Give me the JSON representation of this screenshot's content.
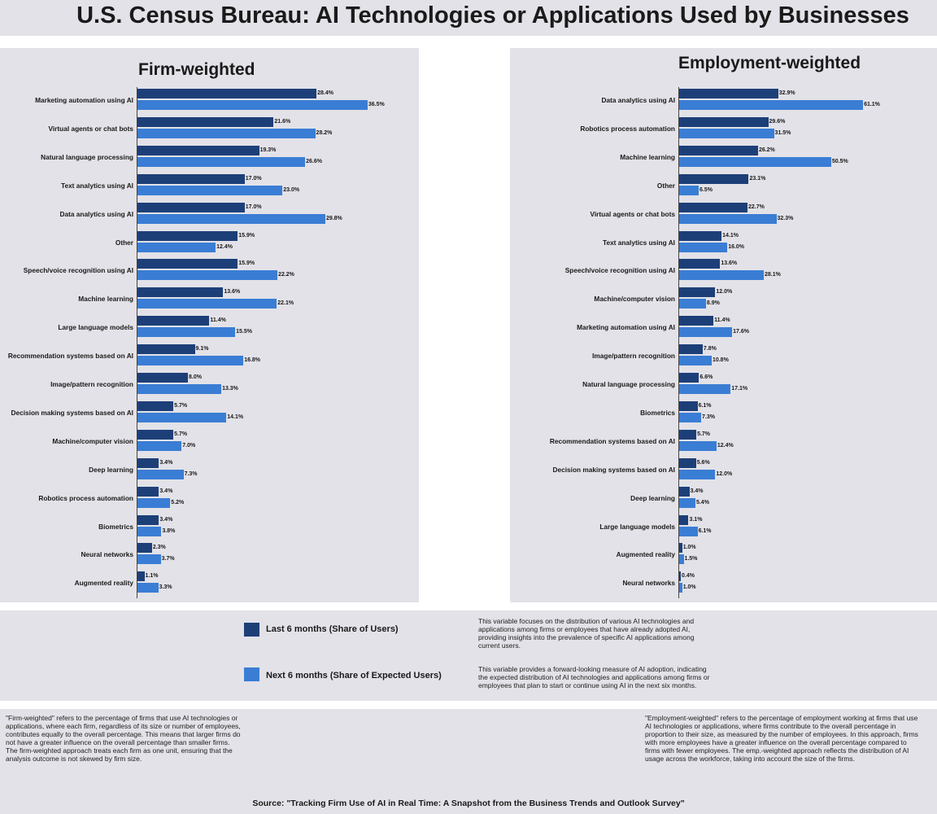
{
  "title": "U.S. Census Bureau: AI Technologies or Applications Used by Businesses",
  "colors": {
    "last": "#1d3f78",
    "next": "#3a7dd4",
    "panel": "#e2e2e8"
  },
  "legend": {
    "last_label": "Last 6 months (Share of Users)",
    "next_label": "Next 6 months (Share of Expected Users)",
    "last_desc": "This variable focuses on the distribution of various AI technologies and applications among firms or employees that have already adopted AI, providing insights into the prevalence of specific AI applications among current users.",
    "next_desc": "This variable provides a forward-looking measure of AI adoption, indicating the expected distribution of AI technologies and applications among firms or employees that plan to start or continue using AI in the next six months."
  },
  "notes": {
    "firm": "\"Firm-weighted\" refers to the percentage of firms that use AI technologies or applications, where each firm, regardless of its size or number of employees, contributes equally to the overall percentage. This means that larger firms do not have a greater influence on the overall percentage than smaller firms. The firm-weighted approach treats each firm as one unit, ensuring that the analysis outcome is not skewed by firm size.",
    "employment": "\"Employment-weighted\" refers to the percentage of employment working at firms that use AI technologies or applications, where firms contribute to the overall percentage in proportion to their size, as measured by the number of employees. In this approach, firms with more employees have a greater influence on the overall percentage compared to firms with fewer employees. The emp.-weighted approach reflects the distribution of AI usage across the workforce, taking into account the size of the firms."
  },
  "source": "Source:  \"Tracking Firm Use of AI in Real Time: A Snapshot from the Business Trends and Outlook Survey\"",
  "chart_data": [
    {
      "type": "bar",
      "orientation": "horizontal",
      "title": "Firm-weighted",
      "categories": [
        "Marketing automation using AI",
        "Virtual agents or chat bots",
        "Natural language processing",
        "Text analytics using AI",
        "Data analytics using AI",
        "Other",
        "Speech/voice recognition using AI",
        "Machine learning",
        "Large language models",
        "Recommendation systems based on AI",
        "Image/pattern recognition",
        "Decision making systems based on AI",
        "Machine/computer vision",
        "Deep learning",
        "Robotics process automation",
        "Biometrics",
        "Neural networks",
        "Augmented reality"
      ],
      "series": [
        {
          "name": "Last 6 months (Share of Users)",
          "values": [
            28.4,
            21.6,
            19.3,
            17.0,
            17.0,
            15.9,
            15.9,
            13.6,
            11.4,
            9.1,
            8.0,
            5.7,
            5.7,
            3.4,
            3.4,
            3.4,
            2.3,
            1.1
          ]
        },
        {
          "name": "Next 6 months (Share of Expected Users)",
          "values": [
            36.5,
            28.2,
            26.6,
            23.0,
            29.8,
            12.4,
            22.2,
            22.1,
            15.5,
            16.8,
            13.3,
            14.1,
            7.0,
            7.3,
            5.2,
            3.8,
            3.7,
            3.3
          ]
        }
      ],
      "labels_last": [
        "28.4%",
        "21.6%",
        "19.3%",
        "17.0%",
        "17.0%",
        "15.9%",
        "15.9%",
        "13.6%",
        "11.4%",
        "9.1%",
        "8.0%",
        "5.7%",
        "5.7%",
        "3.4%",
        "3.4%",
        "3.4%",
        "2.3%",
        "1.1%"
      ],
      "labels_next": [
        "36.5%",
        "28.2%",
        "26.6%",
        "23.0%",
        "29.8%",
        "12.4%",
        "22.2%",
        "22.1%",
        "15.5%",
        "16.8%",
        "13.3%",
        "14.1%",
        "7.0%",
        "7.3%",
        "5.2%",
        "3.8%",
        "3.7%",
        "3.3%"
      ]
    },
    {
      "type": "bar",
      "orientation": "horizontal",
      "title": "Employment-weighted",
      "categories": [
        "Data analytics using AI",
        "Robotics process automation",
        "Machine learning",
        "Other",
        "Virtual agents or chat bots",
        "Text analytics using AI",
        "Speech/voice recognition using AI",
        "Machine/computer vision",
        "Marketing automation using AI",
        "Image/pattern recognition",
        "Natural language processing",
        "Biometrics",
        "Recommendation systems based on AI",
        "Decision making systems based on AI",
        "Deep learning",
        "Large language models",
        "Augmented reality",
        "Neural networks"
      ],
      "series": [
        {
          "name": "Last 6 months (Share of Users)",
          "values": [
            32.9,
            29.6,
            26.2,
            23.1,
            22.7,
            14.1,
            13.6,
            12.0,
            11.4,
            7.8,
            6.6,
            6.1,
            5.7,
            5.6,
            3.4,
            3.1,
            1.0,
            0.4
          ]
        },
        {
          "name": "Next 6 months (Share of Expected Users)",
          "values": [
            61.1,
            31.5,
            50.5,
            6.5,
            32.3,
            16.0,
            28.1,
            8.9,
            17.6,
            10.8,
            17.1,
            7.3,
            12.4,
            12.0,
            5.4,
            6.1,
            1.5,
            1.0
          ]
        }
      ],
      "labels_last": [
        "32.9%",
        "29.6%",
        "26.2%",
        "23.1%",
        "22.7%",
        "14.1%",
        "13.6%",
        "12.0%",
        "11.4%",
        "7.8%",
        "6.6%",
        "6.1%",
        "5.7%",
        "5.6%",
        "3.4%",
        "3.1%",
        "1.0%",
        "0.4%"
      ],
      "labels_next": [
        "61.1%",
        "31.5%",
        "50.5%",
        "6.5%",
        "32.3%",
        "16.0%",
        "28.1%",
        "8.9%",
        "17.6%",
        "10.8%",
        "17.1%",
        "7.3%",
        "12.4%",
        "12.0%",
        "5.4%",
        "6.1%",
        "1.5%",
        "1.0%"
      ]
    }
  ]
}
